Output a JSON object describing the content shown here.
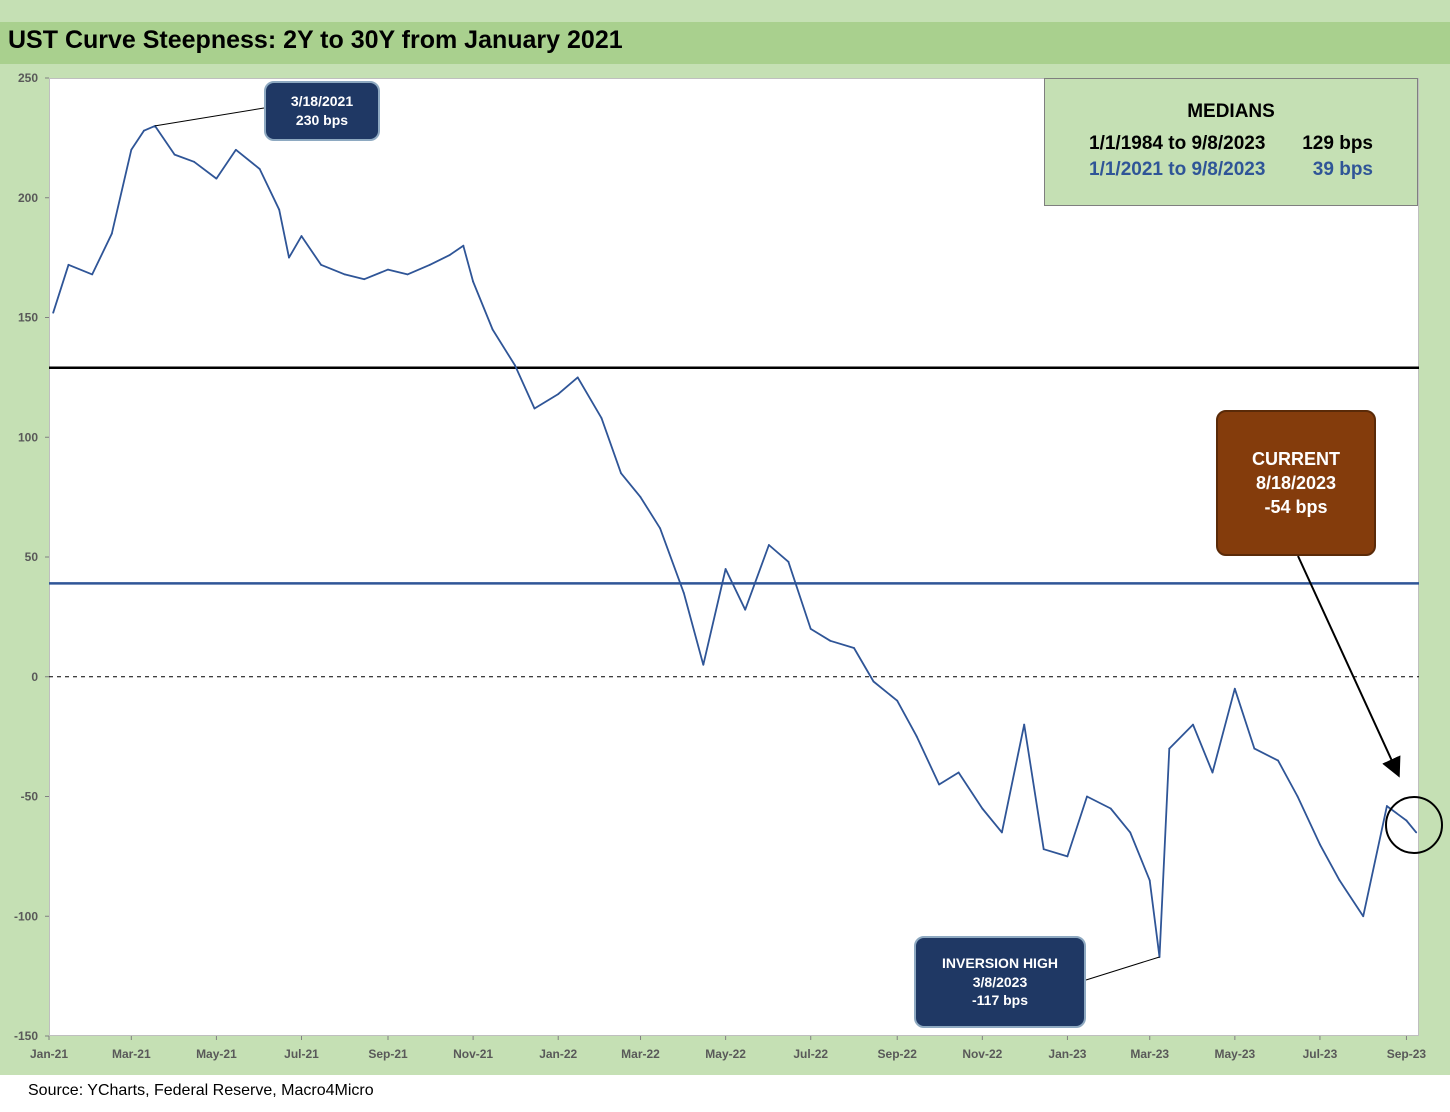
{
  "title": "UST Curve Steepness: 2Y to 30Y from January 2021",
  "source": "Source: YCharts, Federal Reserve, Macro4Micro",
  "medians": {
    "heading": "MEDIANS",
    "rows": [
      {
        "range": "1/1/1984 to 9/8/2023",
        "value": "129 bps",
        "color": "#000000"
      },
      {
        "range": "1/1/2021 to 9/8/2023",
        "value": "39 bps",
        "color": "#2f5597"
      }
    ]
  },
  "annotations": {
    "peak": {
      "line1": "3/18/2021",
      "line2": "230 bps"
    },
    "current": {
      "line1": "CURRENT",
      "line2": "8/18/2023",
      "line3": "-54 bps"
    },
    "inversion": {
      "line1": "INVERSION HIGH",
      "line2": "3/8/2023",
      "line3": "-117 bps"
    }
  },
  "colors": {
    "series": "#2f5597",
    "median_long": "#000000",
    "median_short": "#2f5597",
    "title_bar": "#a9d08e",
    "frame": "#c5e0b4",
    "peak_box": "#1f3864",
    "current_box": "#843c0c",
    "inversion_box": "#1f3864"
  },
  "chart_data": {
    "type": "line",
    "title": "UST Curve Steepness: 2Y to 30Y from January 2021",
    "xlabel": "",
    "ylabel": "",
    "ylim": [
      -150,
      250
    ],
    "yticks": [
      250,
      200,
      150,
      100,
      50,
      0,
      -50,
      -100,
      -150
    ],
    "xticks": [
      "Jan-21",
      "Mar-21",
      "May-21",
      "Jul-21",
      "Sep-21",
      "Nov-21",
      "Jan-22",
      "Mar-22",
      "May-22",
      "Jul-22",
      "Sep-22",
      "Nov-22",
      "Jan-23",
      "Mar-23",
      "May-23",
      "Jul-23",
      "Sep-23"
    ],
    "grid": false,
    "reference_lines": [
      {
        "y": 129,
        "style": "solid",
        "color": "#000000"
      },
      {
        "y": 39,
        "style": "solid",
        "color": "#2f5597"
      },
      {
        "y": 0,
        "style": "dashed",
        "color": "#000000"
      }
    ],
    "series": [
      {
        "color": "#2f5597",
        "x": [
          "2021-01-04",
          "2021-01-15",
          "2021-02-01",
          "2021-02-15",
          "2021-03-01",
          "2021-03-10",
          "2021-03-18",
          "2021-04-01",
          "2021-04-15",
          "2021-05-01",
          "2021-05-15",
          "2021-06-01",
          "2021-06-15",
          "2021-06-22",
          "2021-07-01",
          "2021-07-15",
          "2021-08-01",
          "2021-08-15",
          "2021-09-01",
          "2021-09-15",
          "2021-10-01",
          "2021-10-15",
          "2021-10-25",
          "2021-11-01",
          "2021-11-15",
          "2021-12-01",
          "2021-12-15",
          "2022-01-01",
          "2022-01-15",
          "2022-02-01",
          "2022-02-15",
          "2022-03-01",
          "2022-03-15",
          "2022-04-01",
          "2022-04-15",
          "2022-05-01",
          "2022-05-15",
          "2022-06-01",
          "2022-06-15",
          "2022-07-01",
          "2022-07-15",
          "2022-08-01",
          "2022-08-15",
          "2022-09-01",
          "2022-09-15",
          "2022-10-01",
          "2022-10-15",
          "2022-11-01",
          "2022-11-15",
          "2022-12-01",
          "2022-12-15",
          "2023-01-01",
          "2023-01-15",
          "2023-02-01",
          "2023-02-15",
          "2023-03-01",
          "2023-03-08",
          "2023-03-15",
          "2023-04-01",
          "2023-04-15",
          "2023-05-01",
          "2023-05-15",
          "2023-06-01",
          "2023-06-15",
          "2023-07-01",
          "2023-07-15",
          "2023-08-01",
          "2023-08-18",
          "2023-09-01",
          "2023-09-08"
        ],
        "y": [
          152,
          172,
          168,
          185,
          220,
          228,
          230,
          218,
          215,
          208,
          220,
          212,
          195,
          175,
          184,
          172,
          168,
          166,
          170,
          168,
          172,
          176,
          180,
          165,
          145,
          130,
          112,
          118,
          125,
          108,
          85,
          75,
          62,
          35,
          5,
          45,
          28,
          55,
          48,
          20,
          15,
          12,
          -2,
          -10,
          -25,
          -45,
          -40,
          -55,
          -65,
          -20,
          -72,
          -75,
          -50,
          -55,
          -65,
          -85,
          -117,
          -30,
          -20,
          -40,
          -5,
          -30,
          -35,
          -50,
          -70,
          -85,
          -100,
          -54,
          -60,
          -65
        ]
      }
    ]
  }
}
